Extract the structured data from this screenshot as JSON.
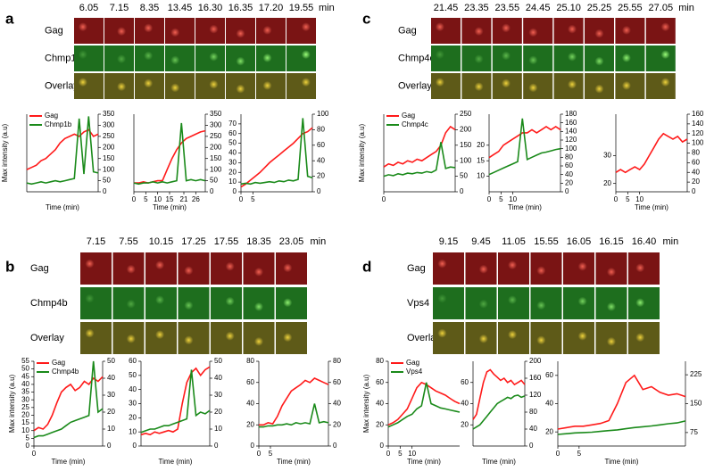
{
  "panels": [
    {
      "label": "a",
      "times": [
        "6.05",
        "7.15",
        "8.35",
        "13.45",
        "16.30",
        "16.35",
        "17.20",
        "19.55"
      ],
      "unit": "min",
      "rows": [
        "Gag",
        "Chmp1b",
        "Overlay"
      ]
    },
    {
      "label": "c",
      "times": [
        "21.45",
        "23.35",
        "23.55",
        "24.45",
        "25.10",
        "25.25",
        "25.55",
        "27.05"
      ],
      "unit": "min",
      "rows": [
        "Gag",
        "Chmp4c",
        "Overlay"
      ]
    },
    {
      "label": "b",
      "times": [
        "7.15",
        "7.55",
        "10.15",
        "17.25",
        "17.55",
        "18.35",
        "23.05"
      ],
      "unit": "min",
      "rows": [
        "Gag",
        "Chmp4b",
        "Overlay"
      ]
    },
    {
      "label": "d",
      "times": [
        "9.15",
        "9.45",
        "11.05",
        "15.55",
        "16.05",
        "16.15",
        "16.40"
      ],
      "unit": "min",
      "rows": [
        "Gag",
        "Vps4",
        "Overlay"
      ]
    }
  ],
  "chart_data": [
    {
      "type": "line",
      "ylabel": "Max intensity (a.u)",
      "xlabel": "Time (min)",
      "xlim": [
        0,
        30
      ],
      "x": [
        0,
        2,
        4,
        6,
        8,
        10,
        12,
        14,
        16,
        18,
        20,
        22,
        24,
        26,
        28,
        30
      ],
      "ylim": [
        0,
        70
      ],
      "y2lim": [
        0,
        350
      ],
      "y2ticks": [
        0,
        50,
        100,
        150,
        200,
        250,
        300,
        350
      ],
      "series": [
        {
          "name": "Gag",
          "color": "#ff1a1a",
          "values": [
            20,
            22,
            24,
            28,
            30,
            34,
            38,
            44,
            48,
            50,
            52,
            50,
            54,
            56,
            50,
            52
          ]
        },
        {
          "name": "Chmp1b",
          "color": "#1a8a1a",
          "axis": "y2",
          "values": [
            40,
            35,
            40,
            45,
            40,
            45,
            50,
            45,
            50,
            55,
            60,
            330,
            80,
            340,
            90,
            85
          ]
        }
      ]
    },
    {
      "type": "line",
      "xlabel": "Time (min)",
      "xlim": [
        0,
        30
      ],
      "x": [
        0,
        2,
        4,
        6,
        8,
        10,
        12,
        14,
        16,
        18,
        20,
        22,
        24,
        26,
        28,
        30
      ],
      "xticks": [
        0,
        5,
        10,
        15,
        21,
        26
      ],
      "ylim": [
        0,
        70
      ],
      "y2lim": [
        0,
        350
      ],
      "y2ticks": [
        0,
        50,
        100,
        150,
        200,
        250,
        300,
        350
      ],
      "series": [
        {
          "color": "#ff1a1a",
          "values": [
            8,
            8,
            9,
            8,
            9,
            10,
            10,
            20,
            30,
            38,
            44,
            48,
            50,
            52,
            54,
            55
          ]
        },
        {
          "color": "#1a8a1a",
          "axis": "y2",
          "values": [
            40,
            35,
            40,
            40,
            45,
            40,
            45,
            40,
            45,
            50,
            310,
            50,
            55,
            50,
            55,
            50
          ]
        }
      ]
    },
    {
      "type": "line",
      "xlim": [
        0,
        30
      ],
      "x": [
        0,
        2,
        4,
        6,
        8,
        10,
        12,
        14,
        16,
        18,
        20,
        22,
        24,
        26,
        28,
        30
      ],
      "xticks": [
        0,
        5
      ],
      "ylim": [
        0,
        80
      ],
      "yticks": [
        0,
        10,
        20,
        30,
        40,
        50,
        60,
        70
      ],
      "y2lim": [
        0,
        100
      ],
      "y2ticks": [
        0,
        20,
        40,
        60,
        80,
        100
      ],
      "series": [
        {
          "color": "#ff1a1a",
          "values": [
            5,
            8,
            12,
            16,
            20,
            25,
            30,
            34,
            38,
            42,
            46,
            50,
            55,
            60,
            62,
            66
          ]
        },
        {
          "color": "#1a8a1a",
          "axis": "y2",
          "values": [
            10,
            11,
            10,
            12,
            11,
            12,
            13,
            12,
            14,
            13,
            15,
            14,
            16,
            95,
            20,
            18
          ]
        }
      ]
    },
    {
      "type": "line",
      "ylabel": "Max intensity (a.u)",
      "xlim": [
        0,
        30
      ],
      "x": [
        0,
        2,
        4,
        6,
        8,
        10,
        12,
        14,
        16,
        18,
        20,
        22,
        24,
        26,
        28,
        30
      ],
      "xticks": [
        0
      ],
      "ylim": [
        0,
        50
      ],
      "y2lim": [
        0,
        250
      ],
      "y2ticks": [
        0,
        50,
        100,
        150,
        200,
        250
      ],
      "series": [
        {
          "name": "Gag",
          "color": "#ff1a1a",
          "values": [
            16,
            18,
            17,
            19,
            18,
            20,
            19,
            21,
            20,
            22,
            24,
            26,
            30,
            38,
            42,
            40
          ]
        },
        {
          "name": "Chmp4c",
          "color": "#1a8a1a",
          "axis": "y2",
          "values": [
            50,
            55,
            52,
            58,
            55,
            60,
            58,
            62,
            60,
            65,
            62,
            70,
            160,
            75,
            80,
            78
          ]
        }
      ]
    },
    {
      "type": "line",
      "xlabel": "Time (min)",
      "xlim": [
        0,
        30
      ],
      "x": [
        0,
        2,
        4,
        6,
        8,
        10,
        12,
        14,
        16,
        18,
        20,
        22,
        24,
        26,
        28,
        30
      ],
      "xticks": [
        0,
        5,
        10
      ],
      "ylim": [
        5,
        30
      ],
      "yticks": [
        10,
        15,
        20
      ],
      "y2lim": [
        0,
        180
      ],
      "y2ticks": [
        0,
        20,
        40,
        60,
        80,
        100,
        120,
        140,
        160,
        180
      ],
      "series": [
        {
          "color": "#ff1a1a",
          "values": [
            16,
            17,
            18,
            20,
            21,
            22,
            23,
            24,
            24,
            25,
            24,
            25,
            26,
            25,
            26,
            25
          ]
        },
        {
          "color": "#1a8a1a",
          "axis": "y2",
          "values": [
            40,
            45,
            50,
            55,
            60,
            65,
            70,
            170,
            75,
            80,
            85,
            90,
            92,
            95,
            98,
            100
          ]
        }
      ]
    },
    {
      "type": "line",
      "xlabel": "Time (min)",
      "xlim": [
        0,
        30
      ],
      "x": [
        0,
        2,
        4,
        6,
        8,
        10,
        12,
        14,
        16,
        18,
        20,
        22,
        24,
        26,
        28,
        30
      ],
      "xticks": [
        0,
        5,
        10
      ],
      "ylim": [
        17,
        45
      ],
      "yticks": [
        20,
        30
      ],
      "y2lim": [
        0,
        160
      ],
      "y2ticks": [
        0,
        20,
        40,
        60,
        80,
        100,
        120,
        140,
        160
      ],
      "series": [
        {
          "color": "#ff1a1a",
          "values": [
            24,
            25,
            24,
            25,
            26,
            25,
            27,
            30,
            33,
            36,
            38,
            37,
            36,
            37,
            35,
            36
          ]
        }
      ]
    },
    {
      "type": "line",
      "ylabel": "Max intensity (a.u)",
      "xlabel": "Time (min)",
      "xlim": [
        0,
        30
      ],
      "x": [
        0,
        2,
        4,
        6,
        8,
        10,
        12,
        14,
        16,
        18,
        20,
        22,
        24,
        26,
        28,
        30
      ],
      "xticks": [
        0
      ],
      "ylim": [
        0,
        55
      ],
      "yticks": [
        0,
        5,
        10,
        15,
        20,
        25,
        30,
        35,
        40,
        45,
        50,
        55
      ],
      "y2lim": [
        0,
        50
      ],
      "y2ticks": [
        0,
        10,
        20,
        30,
        40,
        50
      ],
      "series": [
        {
          "name": "Gag",
          "color": "#ff1a1a",
          "values": [
            10,
            12,
            11,
            14,
            20,
            28,
            35,
            38,
            40,
            36,
            38,
            42,
            40,
            44,
            42,
            45
          ]
        },
        {
          "name": "Chmp4b",
          "color": "#1a8a1a",
          "axis": "y2",
          "values": [
            5,
            6,
            6,
            7,
            8,
            9,
            10,
            12,
            14,
            15,
            16,
            17,
            18,
            50,
            20,
            22
          ]
        }
      ]
    },
    {
      "type": "line",
      "xlabel": "Time (min)",
      "xlim": [
        0,
        30
      ],
      "x": [
        0,
        2,
        4,
        6,
        8,
        10,
        12,
        14,
        16,
        18,
        20,
        22,
        24,
        26,
        28,
        30
      ],
      "ylim": [
        0,
        60
      ],
      "yticks": [
        0,
        10,
        20,
        30,
        40,
        50,
        60
      ],
      "y2lim": [
        0,
        50
      ],
      "y2ticks": [
        0,
        10,
        20,
        30,
        40,
        50
      ],
      "series": [
        {
          "color": "#ff1a1a",
          "values": [
            8,
            9,
            8,
            10,
            9,
            10,
            11,
            10,
            12,
            30,
            45,
            52,
            55,
            50,
            54,
            56
          ]
        },
        {
          "color": "#1a8a1a",
          "axis": "y2",
          "values": [
            8,
            9,
            10,
            10,
            11,
            12,
            12,
            13,
            14,
            15,
            16,
            45,
            18,
            20,
            19,
            21
          ]
        }
      ]
    },
    {
      "type": "line",
      "xlabel": "Time (min)",
      "xlim": [
        0,
        30
      ],
      "x": [
        0,
        2,
        4,
        6,
        8,
        10,
        12,
        14,
        16,
        18,
        20,
        22,
        24,
        26,
        28,
        30
      ],
      "xticks": [
        0,
        5
      ],
      "ylim": [
        0,
        80
      ],
      "yticks": [
        0,
        20,
        40,
        60,
        80
      ],
      "y2lim": [
        0,
        80
      ],
      "y2ticks": [
        0,
        20,
        40,
        60,
        80
      ],
      "series": [
        {
          "color": "#ff1a1a",
          "values": [
            20,
            20,
            22,
            21,
            28,
            38,
            45,
            52,
            55,
            58,
            62,
            60,
            64,
            62,
            60,
            58
          ]
        },
        {
          "color": "#1a8a1a",
          "axis": "y2",
          "values": [
            18,
            18,
            19,
            19,
            20,
            20,
            21,
            20,
            22,
            21,
            22,
            21,
            40,
            22,
            23,
            22
          ]
        }
      ]
    },
    {
      "type": "line",
      "ylabel": "Max intensity (a.u)",
      "xlabel": "Time (min)",
      "xlim": [
        0,
        30
      ],
      "x": [
        0,
        2,
        4,
        6,
        8,
        10,
        12,
        14,
        16,
        18,
        20,
        22,
        24,
        26,
        28,
        30
      ],
      "xticks": [
        0,
        5,
        10
      ],
      "ylim": [
        0,
        80
      ],
      "yticks": [
        0,
        20,
        40,
        60,
        80
      ],
      "series": [
        {
          "name": "Gag",
          "color": "#ff1a1a",
          "values": [
            20,
            22,
            25,
            30,
            35,
            45,
            55,
            60,
            58,
            55,
            52,
            50,
            48,
            45,
            42,
            40
          ]
        },
        {
          "name": "Vps4",
          "color": "#1a8a1a",
          "values": [
            18,
            20,
            22,
            25,
            28,
            30,
            35,
            38,
            60,
            40,
            38,
            36,
            35,
            34,
            33,
            32
          ]
        }
      ]
    },
    {
      "type": "line",
      "xlabel": "Time (min)",
      "xlim": [
        0,
        30
      ],
      "x": [
        0,
        2,
        4,
        6,
        8,
        10,
        12,
        14,
        16,
        18,
        20,
        22,
        24,
        26,
        28,
        30
      ],
      "ylim": [
        0,
        80
      ],
      "yticks": [
        20,
        40,
        60
      ],
      "y2lim": [
        0,
        200
      ],
      "y2ticks": [
        0,
        40,
        80,
        120,
        160,
        200
      ],
      "series": [
        {
          "color": "#ff1a1a",
          "values": [
            25,
            30,
            45,
            60,
            70,
            72,
            68,
            65,
            62,
            64,
            60,
            62,
            58,
            60,
            62,
            58
          ]
        },
        {
          "color": "#1a8a1a",
          "axis": "y2",
          "values": [
            40,
            45,
            50,
            60,
            70,
            80,
            90,
            100,
            105,
            110,
            115,
            112,
            118,
            120,
            115,
            118
          ]
        }
      ]
    },
    {
      "type": "line",
      "xlabel": "Time (min)",
      "xlim": [
        0,
        30
      ],
      "x": [
        0,
        2,
        4,
        6,
        8,
        10,
        12,
        14,
        16,
        18,
        20,
        22,
        24,
        26,
        28,
        30
      ],
      "xticks": [
        0,
        5
      ],
      "ylim": [
        10,
        70
      ],
      "yticks": [
        20,
        40,
        60
      ],
      "y2lim": [
        40,
        260
      ],
      "y2ticks": [
        75,
        150,
        225
      ],
      "series": [
        {
          "color": "#ff1a1a",
          "values": [
            22,
            23,
            24,
            24,
            25,
            26,
            28,
            40,
            55,
            60,
            50,
            52,
            48,
            46,
            47,
            45
          ]
        },
        {
          "color": "#1a8a1a",
          "axis": "y2",
          "values": [
            70,
            72,
            74,
            75,
            76,
            78,
            80,
            82,
            85,
            88,
            90,
            92,
            95,
            98,
            100,
            105
          ]
        }
      ]
    }
  ]
}
